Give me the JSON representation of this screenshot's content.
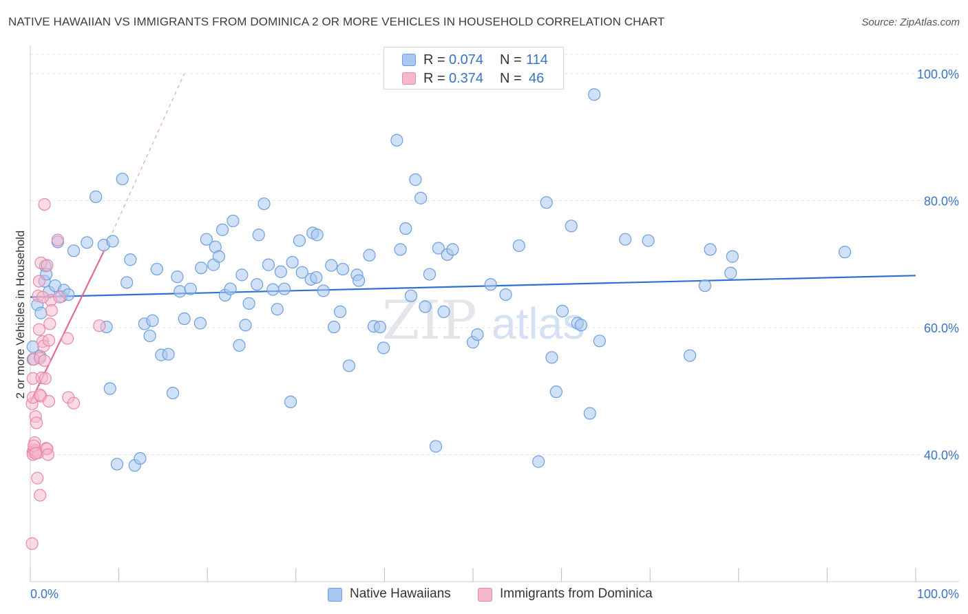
{
  "header": {
    "title": "NATIVE HAWAIIAN VS IMMIGRANTS FROM DOMINICA 2 OR MORE VEHICLES IN HOUSEHOLD CORRELATION CHART",
    "source": "Source: ZipAtlas.com"
  },
  "legend_top": {
    "rows": [
      {
        "r_label": "R =",
        "r_value": "0.074",
        "n_label": "N =",
        "n_value": "114"
      },
      {
        "r_label": "R =",
        "r_value": "0.374",
        "n_label": "N =",
        "n_value": "46"
      }
    ]
  },
  "legend_bottom": {
    "items": [
      {
        "label": "Native Hawaiians"
      },
      {
        "label": "Immigrants from Dominica"
      }
    ]
  },
  "colors": {
    "blue_fill": "#a9c8f0",
    "blue_stroke": "#6a9ee0",
    "blue_line": "#2e70d0",
    "pink_fill": "#f6b8cc",
    "pink_stroke": "#e887a7",
    "pink_line": "#e06a93",
    "tick_label": "#3a73c4"
  },
  "chart_data": {
    "type": "scatter",
    "title": "NATIVE HAWAIIAN VS IMMIGRANTS FROM DOMINICA 2 OR MORE VEHICLES IN HOUSEHOLD CORRELATION CHART",
    "xlabel": "",
    "ylabel": "2 or more Vehicles in Household",
    "xlim": [
      0,
      100
    ],
    "ylim": [
      20,
      104
    ],
    "x_tick_labels": [
      "0.0%",
      "100.0%"
    ],
    "y_ticks": [
      {
        "value": 40,
        "label": "40.0%"
      },
      {
        "value": 60,
        "label": "60.0%"
      },
      {
        "value": 80,
        "label": "80.0%"
      },
      {
        "value": 100,
        "label": "100.0%"
      }
    ],
    "grid": true,
    "watermark": "ZIPatlas",
    "series": [
      {
        "name": "Native Hawaiians",
        "r": 0.074,
        "n": 114,
        "trend": {
          "x0": 0,
          "y0": 64.8,
          "x1": 100,
          "y1": 68.2
        },
        "points": [
          [
            0.3,
            55
          ],
          [
            0.3,
            57
          ],
          [
            0.8,
            63.6
          ],
          [
            1.1,
            55.5
          ],
          [
            1.2,
            62.3
          ],
          [
            1.6,
            67.3
          ],
          [
            1.7,
            69.7
          ],
          [
            1.8,
            68.4
          ],
          [
            2.1,
            65.6
          ],
          [
            2.8,
            66.6
          ],
          [
            3.1,
            73.5
          ],
          [
            3.5,
            64.9
          ],
          [
            3.8,
            65.9
          ],
          [
            4.3,
            65.2
          ],
          [
            4.9,
            72.1
          ],
          [
            6.4,
            73.4
          ],
          [
            7.4,
            80.6
          ],
          [
            8.3,
            73.0
          ],
          [
            8.6,
            60.1
          ],
          [
            9.0,
            50.4
          ],
          [
            9.3,
            73.6
          ],
          [
            9.8,
            38.5
          ],
          [
            10.4,
            83.4
          ],
          [
            10.9,
            67.1
          ],
          [
            11.3,
            70.7
          ],
          [
            11.8,
            38.3
          ],
          [
            12.4,
            39.4
          ],
          [
            12.9,
            60.6
          ],
          [
            13.5,
            58.7
          ],
          [
            13.8,
            61.1
          ],
          [
            14.3,
            69.2
          ],
          [
            14.8,
            55.7
          ],
          [
            15.6,
            55.8
          ],
          [
            16.1,
            49.7
          ],
          [
            16.6,
            68.0
          ],
          [
            16.9,
            65.7
          ],
          [
            17.4,
            61.4
          ],
          [
            18.1,
            66.1
          ],
          [
            19.2,
            60.7
          ],
          [
            19.3,
            69.4
          ],
          [
            20.7,
            69.9
          ],
          [
            19.9,
            73.9
          ],
          [
            20.9,
            72.7
          ],
          [
            21.3,
            71.2
          ],
          [
            21.7,
            75.4
          ],
          [
            22.0,
            65.1
          ],
          [
            22.6,
            66.1
          ],
          [
            22.9,
            76.8
          ],
          [
            23.6,
            57.2
          ],
          [
            23.9,
            68.3
          ],
          [
            24.3,
            60.4
          ],
          [
            24.7,
            63.8
          ],
          [
            25.6,
            66.8
          ],
          [
            25.8,
            74.6
          ],
          [
            26.4,
            79.5
          ],
          [
            26.9,
            69.9
          ],
          [
            27.4,
            66.0
          ],
          [
            27.9,
            62.9
          ],
          [
            28.3,
            68.8
          ],
          [
            28.7,
            66.1
          ],
          [
            29.4,
            48.3
          ],
          [
            29.6,
            70.3
          ],
          [
            30.4,
            73.7
          ],
          [
            30.7,
            68.7
          ],
          [
            31.7,
            67.6
          ],
          [
            31.9,
            74.9
          ],
          [
            32.4,
            74.6
          ],
          [
            32.3,
            67.9
          ],
          [
            33.1,
            65.8
          ],
          [
            34.0,
            69.8
          ],
          [
            34.3,
            60.1
          ],
          [
            35.0,
            62.5
          ],
          [
            35.3,
            69.2
          ],
          [
            36.0,
            54.0
          ],
          [
            36.9,
            68.3
          ],
          [
            37.1,
            67.4
          ],
          [
            38.3,
            71.4
          ],
          [
            38.8,
            60.2
          ],
          [
            39.5,
            60.1
          ],
          [
            39.9,
            56.8
          ],
          [
            41.4,
            89.5
          ],
          [
            41.8,
            72.3
          ],
          [
            42.4,
            75.6
          ],
          [
            43.0,
            65.0
          ],
          [
            43.5,
            83.3
          ],
          [
            44.1,
            80.4
          ],
          [
            44.6,
            63.3
          ],
          [
            45.1,
            68.4
          ],
          [
            45.8,
            41.3
          ],
          [
            46.1,
            72.5
          ],
          [
            46.7,
            62.5
          ],
          [
            47.1,
            71.5
          ],
          [
            47.7,
            72.3
          ],
          [
            50.0,
            57.7
          ],
          [
            50.5,
            58.9
          ],
          [
            52.0,
            66.8
          ],
          [
            53.7,
            65.2
          ],
          [
            55.2,
            72.9
          ],
          [
            57.4,
            38.9
          ],
          [
            58.3,
            79.7
          ],
          [
            58.9,
            55.3
          ],
          [
            59.4,
            49.9
          ],
          [
            60.1,
            62.6
          ],
          [
            61.1,
            76.0
          ],
          [
            61.8,
            60.7
          ],
          [
            62.2,
            60.4
          ],
          [
            64.3,
            57.9
          ],
          [
            63.2,
            46.5
          ],
          [
            63.7,
            96.7
          ],
          [
            67.2,
            73.9
          ],
          [
            69.8,
            73.7
          ],
          [
            74.5,
            55.6
          ],
          [
            76.2,
            66.6
          ],
          [
            76.8,
            72.3
          ],
          [
            79.1,
            68.6
          ],
          [
            79.3,
            71.2
          ],
          [
            92.0,
            71.9
          ]
        ]
      },
      {
        "name": "Immigrants from Dominica",
        "r": 0.374,
        "n": 46,
        "trend": {
          "x0": 0,
          "y0": 48.2,
          "x1": 8.3,
          "y1": 72.0
        },
        "trend_dashed": {
          "x0": 8.3,
          "y0": 72.0,
          "x1": 17.4,
          "y1": 100.0
        },
        "points": [
          [
            0.3,
            40.4
          ],
          [
            0.3,
            40.0
          ],
          [
            0.4,
            40.8
          ],
          [
            0.2,
            48.0
          ],
          [
            0.3,
            49.0
          ],
          [
            0.3,
            52.0
          ],
          [
            0.4,
            55.0
          ],
          [
            0.5,
            41.9
          ],
          [
            0.6,
            40.6
          ],
          [
            0.6,
            46.0
          ],
          [
            0.7,
            45.0
          ],
          [
            0.8,
            36.3
          ],
          [
            0.9,
            40.3
          ],
          [
            0.9,
            65.0
          ],
          [
            1.0,
            67.3
          ],
          [
            1.0,
            59.7
          ],
          [
            1.1,
            33.6
          ],
          [
            1.1,
            55.2
          ],
          [
            1.2,
            49.2
          ],
          [
            1.3,
            52.1
          ],
          [
            1.4,
            57.8
          ],
          [
            1.5,
            57.1
          ],
          [
            1.6,
            54.8
          ],
          [
            1.7,
            52.0
          ],
          [
            1.8,
            41.0
          ],
          [
            1.9,
            40.9
          ],
          [
            2.0,
            40.0
          ],
          [
            2.1,
            48.4
          ],
          [
            2.2,
            60.6
          ],
          [
            2.3,
            64.3
          ],
          [
            2.4,
            62.7
          ],
          [
            1.6,
            79.4
          ],
          [
            3.1,
            73.8
          ],
          [
            3.3,
            64.8
          ],
          [
            4.2,
            58.3
          ],
          [
            4.3,
            49.0
          ],
          [
            4.9,
            48.1
          ],
          [
            7.8,
            60.3
          ],
          [
            1.2,
            70.2
          ],
          [
            1.9,
            69.8
          ],
          [
            0.2,
            26.0
          ],
          [
            0.4,
            41.4
          ],
          [
            0.6,
            40.2
          ],
          [
            1.1,
            49.4
          ],
          [
            1.4,
            64.8
          ],
          [
            2.1,
            58.0
          ]
        ]
      }
    ]
  }
}
